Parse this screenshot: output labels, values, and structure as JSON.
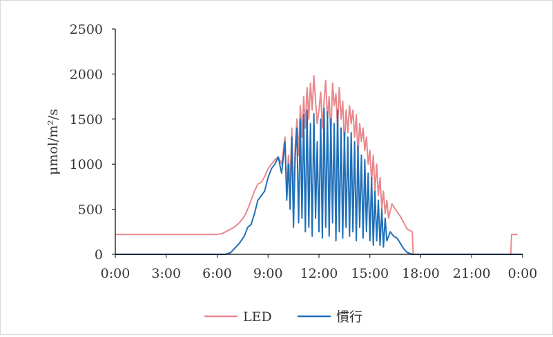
{
  "chart_data": {
    "type": "line",
    "title": "",
    "xlabel": "",
    "ylabel": "μmol/m²/s",
    "ylim": [
      0,
      2500
    ],
    "xlim_hours": [
      0,
      24
    ],
    "y_ticks": [
      0,
      500,
      1000,
      1500,
      2000,
      2500
    ],
    "x_ticks": [
      {
        "hour": 0,
        "label": "0:00"
      },
      {
        "hour": 3,
        "label": "3:00"
      },
      {
        "hour": 6,
        "label": "6:00"
      },
      {
        "hour": 9,
        "label": "9:00"
      },
      {
        "hour": 12,
        "label": "12:00"
      },
      {
        "hour": 15,
        "label": "15:00"
      },
      {
        "hour": 18,
        "label": "18:00"
      },
      {
        "hour": 21,
        "label": "21:00"
      },
      {
        "hour": 24,
        "label": "0:00"
      }
    ],
    "grid": false,
    "legend_position": "bottom",
    "series": [
      {
        "name": "LED",
        "color": "#e8888c",
        "points": [
          [
            0,
            220
          ],
          [
            6.0,
            220
          ],
          [
            6.3,
            230
          ],
          [
            6.6,
            260
          ],
          [
            7.0,
            300
          ],
          [
            7.3,
            350
          ],
          [
            7.6,
            420
          ],
          [
            7.8,
            500
          ],
          [
            8.0,
            600
          ],
          [
            8.2,
            700
          ],
          [
            8.4,
            780
          ],
          [
            8.6,
            800
          ],
          [
            8.8,
            860
          ],
          [
            9.0,
            950
          ],
          [
            9.2,
            1000
          ],
          [
            9.4,
            1050
          ],
          [
            9.6,
            1080
          ],
          [
            9.8,
            1000
          ],
          [
            10.0,
            1300
          ],
          [
            10.1,
            700
          ],
          [
            10.2,
            1100
          ],
          [
            10.3,
            800
          ],
          [
            10.4,
            1400
          ],
          [
            10.5,
            600
          ],
          [
            10.6,
            1200
          ],
          [
            10.7,
            1500
          ],
          [
            10.8,
            1100
          ],
          [
            10.9,
            1650
          ],
          [
            11.0,
            1300
          ],
          [
            11.1,
            1750
          ],
          [
            11.2,
            1400
          ],
          [
            11.3,
            1850
          ],
          [
            11.4,
            1500
          ],
          [
            11.5,
            1900
          ],
          [
            11.6,
            1600
          ],
          [
            11.7,
            1980
          ],
          [
            11.8,
            1700
          ],
          [
            11.9,
            1450
          ],
          [
            12.0,
            1600
          ],
          [
            12.1,
            1800
          ],
          [
            12.2,
            1400
          ],
          [
            12.3,
            1700
          ],
          [
            12.4,
            1930
          ],
          [
            12.5,
            1500
          ],
          [
            12.6,
            1750
          ],
          [
            12.7,
            1300
          ],
          [
            12.8,
            1900
          ],
          [
            12.9,
            1650
          ],
          [
            13.0,
            1780
          ],
          [
            13.1,
            1400
          ],
          [
            13.2,
            1850
          ],
          [
            13.3,
            1500
          ],
          [
            13.4,
            1700
          ],
          [
            13.5,
            1200
          ],
          [
            13.6,
            1600
          ],
          [
            13.7,
            1350
          ],
          [
            13.8,
            1650
          ],
          [
            13.9,
            1450
          ],
          [
            14.0,
            1600
          ],
          [
            14.1,
            1300
          ],
          [
            14.2,
            1550
          ],
          [
            14.3,
            1100
          ],
          [
            14.4,
            1450
          ],
          [
            14.5,
            1250
          ],
          [
            14.6,
            1400
          ],
          [
            14.7,
            1150
          ],
          [
            14.8,
            1300
          ],
          [
            14.9,
            1000
          ],
          [
            15.0,
            1150
          ],
          [
            15.1,
            800
          ],
          [
            15.2,
            1100
          ],
          [
            15.3,
            700
          ],
          [
            15.4,
            1000
          ],
          [
            15.5,
            650
          ],
          [
            15.6,
            850
          ],
          [
            15.7,
            500
          ],
          [
            15.8,
            700
          ],
          [
            15.9,
            450
          ],
          [
            16.0,
            600
          ],
          [
            16.1,
            400
          ],
          [
            16.3,
            560
          ],
          [
            16.5,
            500
          ],
          [
            16.8,
            420
          ],
          [
            17.0,
            350
          ],
          [
            17.2,
            280
          ],
          [
            17.4,
            260
          ],
          [
            17.5,
            250
          ],
          [
            17.55,
            0
          ],
          [
            23.3,
            0
          ],
          [
            23.35,
            220
          ],
          [
            23.7,
            220
          ]
        ]
      },
      {
        "name": "慣行",
        "color": "#1f6fb8",
        "points": [
          [
            0,
            0
          ],
          [
            6.5,
            0
          ],
          [
            6.8,
            20
          ],
          [
            7.0,
            60
          ],
          [
            7.3,
            120
          ],
          [
            7.6,
            200
          ],
          [
            7.8,
            300
          ],
          [
            8.0,
            330
          ],
          [
            8.2,
            450
          ],
          [
            8.4,
            600
          ],
          [
            8.6,
            650
          ],
          [
            8.8,
            700
          ],
          [
            9.0,
            850
          ],
          [
            9.2,
            950
          ],
          [
            9.4,
            1000
          ],
          [
            9.6,
            1080
          ],
          [
            9.8,
            900
          ],
          [
            10.0,
            1250
          ],
          [
            10.1,
            600
          ],
          [
            10.2,
            1000
          ],
          [
            10.3,
            500
          ],
          [
            10.4,
            1300
          ],
          [
            10.5,
            300
          ],
          [
            10.6,
            1100
          ],
          [
            10.7,
            1400
          ],
          [
            10.8,
            350
          ],
          [
            10.9,
            1500
          ],
          [
            11.0,
            400
          ],
          [
            11.1,
            1550
          ],
          [
            11.2,
            250
          ],
          [
            11.3,
            1600
          ],
          [
            11.4,
            300
          ],
          [
            11.5,
            1450
          ],
          [
            11.6,
            200
          ],
          [
            11.7,
            1560
          ],
          [
            11.8,
            400
          ],
          [
            11.9,
            1250
          ],
          [
            12.0,
            250
          ],
          [
            12.1,
            1500
          ],
          [
            12.2,
            180
          ],
          [
            12.3,
            1620
          ],
          [
            12.4,
            300
          ],
          [
            12.5,
            1580
          ],
          [
            12.6,
            200
          ],
          [
            12.7,
            1500
          ],
          [
            12.8,
            350
          ],
          [
            12.9,
            1450
          ],
          [
            13.0,
            150
          ],
          [
            13.1,
            1600
          ],
          [
            13.2,
            250
          ],
          [
            13.3,
            1400
          ],
          [
            13.4,
            180
          ],
          [
            13.5,
            1350
          ],
          [
            13.6,
            300
          ],
          [
            13.7,
            1300
          ],
          [
            13.8,
            200
          ],
          [
            13.9,
            1350
          ],
          [
            14.0,
            250
          ],
          [
            14.1,
            1250
          ],
          [
            14.2,
            150
          ],
          [
            14.3,
            1200
          ],
          [
            14.4,
            300
          ],
          [
            14.5,
            1100
          ],
          [
            14.6,
            180
          ],
          [
            14.7,
            1050
          ],
          [
            14.8,
            250
          ],
          [
            14.9,
            900
          ],
          [
            15.0,
            150
          ],
          [
            15.1,
            850
          ],
          [
            15.2,
            100
          ],
          [
            15.3,
            700
          ],
          [
            15.4,
            150
          ],
          [
            15.5,
            600
          ],
          [
            15.6,
            100
          ],
          [
            15.7,
            500
          ],
          [
            15.8,
            80
          ],
          [
            15.9,
            400
          ],
          [
            16.0,
            150
          ],
          [
            16.2,
            250
          ],
          [
            16.4,
            200
          ],
          [
            16.6,
            180
          ],
          [
            16.8,
            120
          ],
          [
            17.0,
            60
          ],
          [
            17.2,
            20
          ],
          [
            17.5,
            0
          ],
          [
            24,
            0
          ]
        ]
      }
    ]
  }
}
